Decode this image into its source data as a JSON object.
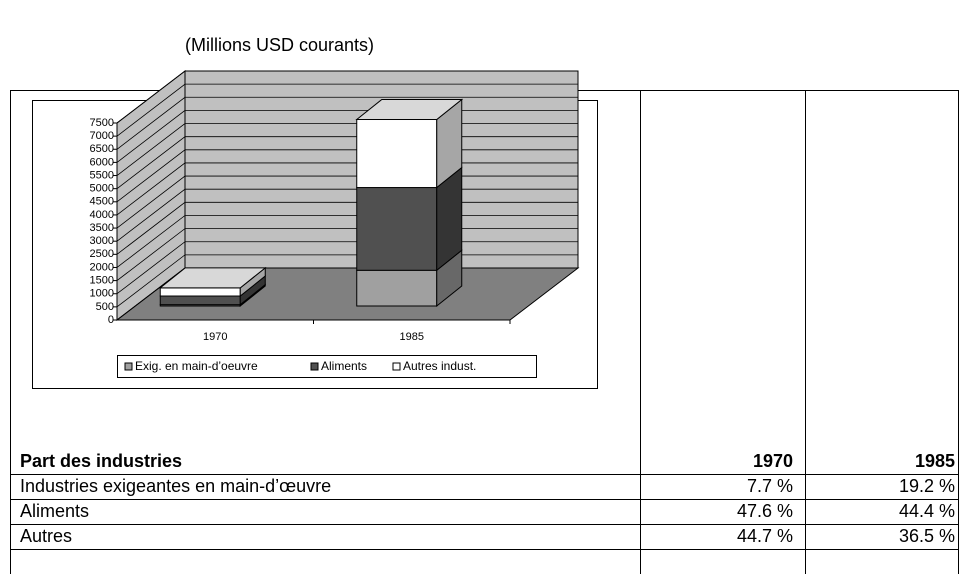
{
  "caption": "(Millions USD courants)",
  "chart_data": {
    "type": "bar",
    "stacked": true,
    "categories": [
      "1970",
      "1985"
    ],
    "series": [
      {
        "name": "Exig. en main-d’oeuvre",
        "color": "#a0a0a0",
        "values": [
          50,
          1360
        ]
      },
      {
        "name": "Aliments",
        "color": "#505050",
        "values": [
          330,
          3150
        ]
      },
      {
        "name": "Autres indust.",
        "color": "#ffffff",
        "values": [
          310,
          2590
        ]
      }
    ],
    "ylim": [
      0,
      7500
    ],
    "yticks": [
      0,
      500,
      1000,
      1500,
      2000,
      2500,
      3000,
      3500,
      4000,
      4500,
      5000,
      5500,
      6000,
      6500,
      7000,
      7500
    ],
    "grid": true,
    "legend": "bottom"
  },
  "table": {
    "header": [
      "Part des industries",
      "1970",
      "1985"
    ],
    "rows": [
      [
        "Industries exigeantes en main-d’œuvre",
        "7.7 %",
        "19.2 %"
      ],
      [
        "Aliments",
        "47.6 %",
        "44.4 %"
      ],
      [
        "Autres",
        "44.7 %",
        "36.5 %"
      ]
    ]
  }
}
